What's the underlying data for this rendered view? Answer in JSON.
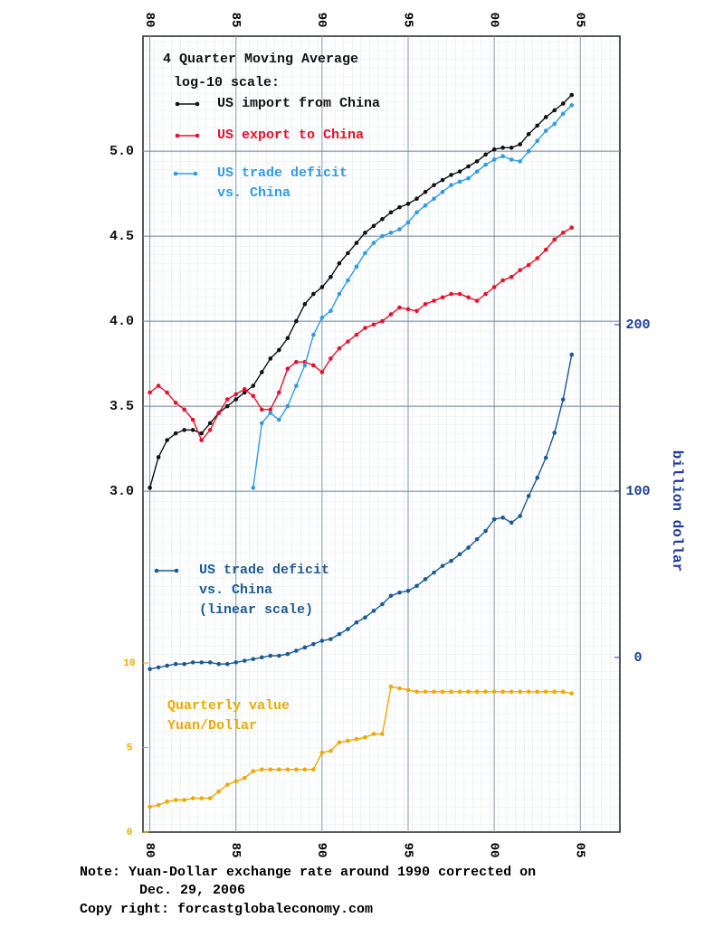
{
  "chart_data": {
    "type": "line",
    "title": "4 Quarter Moving Average",
    "subtitle": "log-10 scale:",
    "y2label": "billion dollar",
    "notes": [
      "Note: Yuan-Dollar exchange rate around 1990 corrected on",
      "Dec. 29, 2006"
    ],
    "source": "Copy right: forcastglobaleconomy.com",
    "x": [
      1980,
      1980.5,
      1981,
      1981.5,
      1982,
      1982.5,
      1983,
      1983.5,
      1984,
      1984.5,
      1985,
      1985.5,
      1986,
      1986.5,
      1987,
      1987.5,
      1988,
      1988.5,
      1989,
      1989.5,
      1990,
      1990.5,
      1991,
      1991.5,
      1992,
      1992.5,
      1993,
      1993.5,
      1994,
      1994.5,
      1995,
      1995.5,
      1996,
      1996.5,
      1997,
      1997.5,
      1998,
      1998.5,
      1999,
      1999.5,
      2000,
      2000.5,
      2001,
      2001.5,
      2002,
      2002.5,
      2003,
      2003.5,
      2004,
      2004.5
    ],
    "xlim": [
      1979.6,
      2007.3
    ],
    "xticks": [
      {
        "value": 1980,
        "label": "80"
      },
      {
        "value": 1985,
        "label": "85"
      },
      {
        "value": 1990,
        "label": "90"
      },
      {
        "value": 1995,
        "label": "95"
      },
      {
        "value": 2000,
        "label": "00"
      },
      {
        "value": 2005,
        "label": "05"
      }
    ],
    "ylim": [
      0.995,
      5.676
    ],
    "yticks": [
      {
        "value": 3,
        "label": "3.0"
      },
      3.5,
      {
        "value": 4,
        "label": "4.0"
      },
      4.5,
      {
        "value": 5,
        "label": "5.0"
      }
    ],
    "y2lim": [
      -105,
      373.4
    ],
    "y2ticks": [
      0,
      100,
      200
    ],
    "y3lim": [
      0,
      47.06
    ],
    "y3ticks": [
      0,
      5,
      10
    ],
    "grid": true,
    "series": [
      {
        "name": "US import from China",
        "color": "#111111",
        "axis": "y",
        "values": [
          3.02,
          3.2,
          3.3,
          3.34,
          3.36,
          3.36,
          3.34,
          3.4,
          3.46,
          3.5,
          3.54,
          3.58,
          3.62,
          3.7,
          3.78,
          3.83,
          3.9,
          4.0,
          4.1,
          4.16,
          4.2,
          4.26,
          4.34,
          4.4,
          4.46,
          4.52,
          4.56,
          4.6,
          4.64,
          4.67,
          4.69,
          4.72,
          4.76,
          4.8,
          4.83,
          4.86,
          4.88,
          4.91,
          4.94,
          4.98,
          5.01,
          5.02,
          5.02,
          5.04,
          5.1,
          5.15,
          5.2,
          5.24,
          5.28,
          5.33
        ]
      },
      {
        "name": "US export to China",
        "color": "#e8102a",
        "axis": "y",
        "values": [
          3.58,
          3.62,
          3.58,
          3.52,
          3.48,
          3.42,
          3.3,
          3.36,
          3.46,
          3.54,
          3.57,
          3.6,
          3.56,
          3.48,
          3.48,
          3.58,
          3.72,
          3.76,
          3.76,
          3.74,
          3.7,
          3.78,
          3.84,
          3.88,
          3.92,
          3.96,
          3.98,
          4.0,
          4.04,
          4.08,
          4.07,
          4.06,
          4.1,
          4.12,
          4.14,
          4.16,
          4.16,
          4.14,
          4.12,
          4.16,
          4.2,
          4.24,
          4.26,
          4.3,
          4.33,
          4.37,
          4.42,
          4.48,
          4.52,
          4.55
        ]
      },
      {
        "name": "US trade deficit\nvs. China",
        "color": "#2e9be6",
        "axis": "y",
        "values": [
          null,
          null,
          null,
          null,
          null,
          null,
          null,
          null,
          null,
          null,
          null,
          null,
          3.02,
          3.4,
          3.46,
          3.42,
          3.5,
          3.62,
          3.74,
          3.92,
          4.02,
          4.06,
          4.16,
          4.24,
          4.32,
          4.4,
          4.46,
          4.5,
          4.52,
          4.54,
          4.58,
          4.64,
          4.68,
          4.72,
          4.76,
          4.8,
          4.82,
          4.84,
          4.88,
          4.92,
          4.95,
          4.97,
          4.95,
          4.94,
          5.0,
          5.06,
          5.12,
          5.16,
          5.22,
          5.27
        ]
      },
      {
        "name": "US trade deficit\nvs. China\n(linear scale)",
        "color": "#1a5a96",
        "axis": "y2",
        "values": [
          -7,
          -6,
          -5,
          -4,
          -4,
          -3,
          -3,
          -3,
          -4,
          -4,
          -3,
          -2,
          -1,
          0,
          1,
          1,
          2,
          4,
          6,
          8,
          10,
          11,
          14,
          17,
          21,
          24,
          28,
          32,
          37,
          39,
          40,
          43,
          47,
          51,
          55,
          58,
          62,
          66,
          71,
          76,
          83,
          84,
          81,
          85,
          97,
          108,
          120,
          135,
          155,
          182
        ]
      },
      {
        "name": "Quarterly value\nYuan/Dollar",
        "color": "#f0a800",
        "axis": "y3",
        "values": [
          1.5,
          1.6,
          1.8,
          1.9,
          1.9,
          2.0,
          2.0,
          2.0,
          2.4,
          2.8,
          3.0,
          3.2,
          3.6,
          3.7,
          3.7,
          3.7,
          3.7,
          3.7,
          3.7,
          3.7,
          4.7,
          4.8,
          5.3,
          5.4,
          5.5,
          5.6,
          5.8,
          5.8,
          8.6,
          8.5,
          8.4,
          8.3,
          8.3,
          8.3,
          8.3,
          8.3,
          8.3,
          8.3,
          8.3,
          8.3,
          8.3,
          8.3,
          8.3,
          8.3,
          8.3,
          8.3,
          8.3,
          8.3,
          8.3,
          8.2
        ]
      }
    ]
  }
}
